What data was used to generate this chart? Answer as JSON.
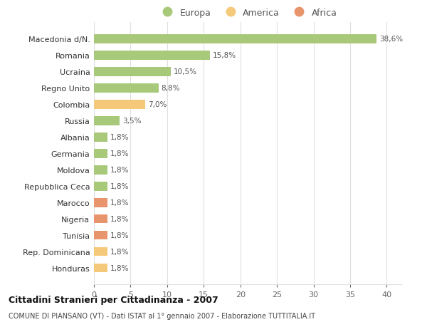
{
  "categories": [
    "Honduras",
    "Rep. Dominicana",
    "Tunisia",
    "Nigeria",
    "Marocco",
    "Repubblica Ceca",
    "Moldova",
    "Germania",
    "Albania",
    "Russia",
    "Colombia",
    "Regno Unito",
    "Ucraina",
    "Romania",
    "Macedonia d/N."
  ],
  "values": [
    1.8,
    1.8,
    1.8,
    1.8,
    1.8,
    1.8,
    1.8,
    1.8,
    1.8,
    3.5,
    7.0,
    8.8,
    10.5,
    15.8,
    38.6
  ],
  "labels": [
    "1,8%",
    "1,8%",
    "1,8%",
    "1,8%",
    "1,8%",
    "1,8%",
    "1,8%",
    "1,8%",
    "1,8%",
    "3,5%",
    "7,0%",
    "8,8%",
    "10,5%",
    "15,8%",
    "38,6%"
  ],
  "colors": [
    "#f5c97a",
    "#f5c97a",
    "#e8956d",
    "#e8956d",
    "#e8956d",
    "#a8c97a",
    "#a8c97a",
    "#a8c97a",
    "#a8c97a",
    "#a8c97a",
    "#f5c97a",
    "#a8c97a",
    "#a8c97a",
    "#a8c97a",
    "#a8c97a"
  ],
  "legend_items": [
    {
      "label": "Europa",
      "color": "#a8c97a"
    },
    {
      "label": "America",
      "color": "#f5c97a"
    },
    {
      "label": "Africa",
      "color": "#e8956d"
    }
  ],
  "xlim": [
    0,
    42
  ],
  "xticks": [
    0,
    5,
    10,
    15,
    20,
    25,
    30,
    35,
    40
  ],
  "title": "Cittadini Stranieri per Cittadinanza - 2007",
  "subtitle": "COMUNE DI PIANSANO (VT) - Dati ISTAT al 1° gennaio 2007 - Elaborazione TUTTITALIA.IT",
  "background_color": "#ffffff",
  "grid_color": "#e0e0e0"
}
